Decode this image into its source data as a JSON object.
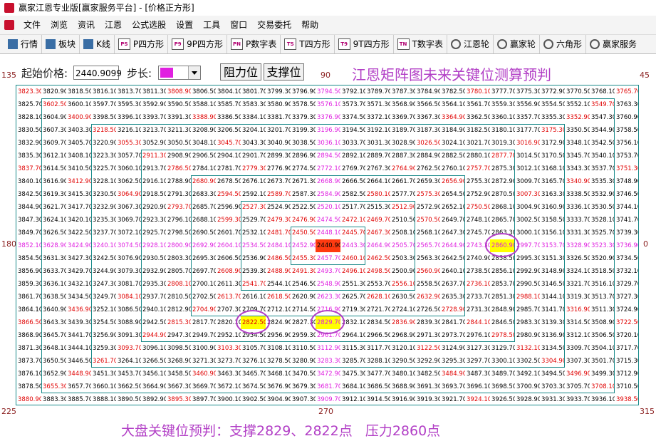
{
  "window": {
    "title": "赢家江恩专业版[赢家服务平台] - [价格正方形]",
    "menu": [
      "文件",
      "浏览",
      "资讯",
      "江恩",
      "公式选股",
      "设置",
      "工具",
      "窗口",
      "交易委托",
      "帮助"
    ],
    "toolbar": [
      {
        "label": "行情"
      },
      {
        "label": "板块"
      },
      {
        "label": "K线"
      },
      {
        "icon": "PS",
        "label": "P四方形"
      },
      {
        "icon": "P9",
        "label": "9P四方形"
      },
      {
        "icon": "PN",
        "label": "P数字表"
      },
      {
        "icon": "TS",
        "label": "T四方形"
      },
      {
        "icon": "T9",
        "label": "9T四方形"
      },
      {
        "icon": "TN",
        "label": "T数字表"
      },
      {
        "label": "江恩轮"
      },
      {
        "label": "赢家轮"
      },
      {
        "label": "六角形"
      },
      {
        "label": "赢家服务"
      }
    ]
  },
  "controls": {
    "start_price_label": "起始价格:",
    "start_price": "2440.9099",
    "step_label": "步长:",
    "buttons": [
      "阻力位",
      "支撑位"
    ]
  },
  "heading": "江恩矩阵图未来关键位测算预判",
  "angles": {
    "top_left": "135",
    "top": "90",
    "top_right": "45",
    "left": "180",
    "right": "0",
    "bottom_left": "225",
    "bottom": "270",
    "bottom_right": "315"
  },
  "table": {
    "rows": [
      [
        "3823.30",
        "3820.90",
        "3818.50",
        "3816.10",
        "3813.70",
        "3811.30",
        "3808.90",
        "3806.50",
        "3804.10",
        "3801.70",
        "3799.30",
        "3796.90",
        "3794.50",
        "3792.10",
        "3789.70",
        "3787.30",
        "3784.90",
        "3782.50",
        "3780.10",
        "3777.70",
        "3775.30",
        "3772.90",
        "3770.50",
        "3768.10",
        "3765.70"
      ],
      [
        "3825.70",
        "3602.50",
        "3600.10",
        "3597.70",
        "3595.30",
        "3592.90",
        "3590.50",
        "3588.10",
        "3585.70",
        "3583.30",
        "3580.90",
        "3578.50",
        "3576.10",
        "3573.70",
        "3571.30",
        "3568.90",
        "3566.50",
        "3564.10",
        "3561.70",
        "3559.30",
        "3556.90",
        "3554.50",
        "3552.10",
        "3549.70",
        "3763.30"
      ],
      [
        "3828.10",
        "3604.90",
        "3400.90",
        "3398.50",
        "3396.10",
        "3393.70",
        "3391.30",
        "3388.90",
        "3386.50",
        "3384.10",
        "3381.70",
        "3379.30",
        "3376.90",
        "3374.50",
        "3372.10",
        "3369.70",
        "3367.30",
        "3364.90",
        "3362.50",
        "3360.10",
        "3357.70",
        "3355.30",
        "3352.90",
        "3547.30",
        "3760.90"
      ],
      [
        "3830.50",
        "3607.30",
        "3403.30",
        "3218.50",
        "3216.10",
        "3213.70",
        "3211.30",
        "3208.90",
        "3206.50",
        "3204.10",
        "3201.70",
        "3199.30",
        "3196.90",
        "3194.50",
        "3192.10",
        "3189.70",
        "3187.30",
        "3184.90",
        "3182.50",
        "3180.10",
        "3177.70",
        "3175.30",
        "3350.50",
        "3544.90",
        "3758.50"
      ],
      [
        "3832.90",
        "3609.70",
        "3405.70",
        "3220.90",
        "3055.30",
        "3052.90",
        "3050.50",
        "3048.10",
        "3045.70",
        "3043.30",
        "3040.90",
        "3038.50",
        "3036.10",
        "3033.70",
        "3031.30",
        "3028.90",
        "3026.50",
        "3024.10",
        "3021.70",
        "3019.30",
        "3016.90",
        "3172.90",
        "3348.10",
        "3542.50",
        "3756.10"
      ],
      [
        "3835.30",
        "3612.10",
        "3408.10",
        "3223.30",
        "3057.70",
        "2911.30",
        "2908.90",
        "2906.50",
        "2904.10",
        "2901.70",
        "2899.30",
        "2896.90",
        "2894.50",
        "2892.10",
        "2889.70",
        "2887.30",
        "2884.90",
        "2882.50",
        "2880.10",
        "2877.70",
        "3014.50",
        "3170.50",
        "3345.70",
        "3540.10",
        "3753.70"
      ],
      [
        "3837.70",
        "3614.50",
        "3410.50",
        "3225.70",
        "3060.10",
        "2913.70",
        "2786.50",
        "2784.10",
        "2781.70",
        "2779.30",
        "2776.90",
        "2774.50",
        "2772.10",
        "2769.70",
        "2767.30",
        "2764.90",
        "2762.50",
        "2760.10",
        "2757.70",
        "2875.30",
        "3012.10",
        "3168.10",
        "3343.30",
        "3537.70",
        "3751.30"
      ],
      [
        "3840.10",
        "3616.90",
        "3412.90",
        "3228.10",
        "3062.50",
        "2916.10",
        "2788.90",
        "2680.90",
        "2678.50",
        "2676.10",
        "2673.70",
        "2671.30",
        "2668.90",
        "2666.50",
        "2664.10",
        "2661.70",
        "2659.30",
        "2656.90",
        "2755.30",
        "2872.90",
        "3009.70",
        "3165.70",
        "3340.90",
        "3535.30",
        "3748.90"
      ],
      [
        "3842.50",
        "3619.30",
        "3415.30",
        "3230.50",
        "3064.90",
        "2918.50",
        "2791.30",
        "2683.30",
        "2594.50",
        "2592.10",
        "2589.70",
        "2587.30",
        "2584.90",
        "2582.50",
        "2580.10",
        "2577.70",
        "2575.30",
        "2654.50",
        "2752.90",
        "2870.50",
        "3007.30",
        "3163.30",
        "3338.50",
        "3532.90",
        "3746.50"
      ],
      [
        "3844.90",
        "3621.70",
        "3417.70",
        "3232.90",
        "3067.30",
        "2920.90",
        "2793.70",
        "2685.70",
        "2596.90",
        "2527.30",
        "2524.90",
        "2522.50",
        "2520.10",
        "2517.70",
        "2515.30",
        "2512.90",
        "2572.90",
        "2652.10",
        "2750.50",
        "2868.10",
        "3004.90",
        "3160.90",
        "3336.10",
        "3530.50",
        "3744.10"
      ],
      [
        "3847.30",
        "3624.10",
        "3420.10",
        "3235.30",
        "3069.70",
        "2923.30",
        "2796.10",
        "2688.10",
        "2599.30",
        "2529.70",
        "2479.30",
        "2476.90",
        "2474.50",
        "2472.10",
        "2469.70",
        "2510.50",
        "2570.50",
        "2649.70",
        "2748.10",
        "2865.70",
        "3002.50",
        "3158.50",
        "3333.70",
        "3528.10",
        "3741.70"
      ],
      [
        "3849.70",
        "3626.50",
        "3422.50",
        "3237.70",
        "3072.10",
        "2925.70",
        "2798.50",
        "2690.50",
        "2601.70",
        "2532.10",
        "2481.70",
        "2450.50",
        "2448.10",
        "2445.70",
        "2467.30",
        "2508.10",
        "2568.10",
        "2647.30",
        "2745.70",
        "2863.30",
        "3000.10",
        "3156.10",
        "3331.30",
        "3525.70",
        "3739.30"
      ],
      [
        "3852.10",
        "3628.90",
        "3424.90",
        "3240.10",
        "3074.50",
        "2928.10",
        "2800.90",
        "2692.90",
        "2604.10",
        "2534.50",
        "2484.10",
        "2452.90",
        "2440.90",
        "2443.30",
        "2464.90",
        "2505.70",
        "2565.70",
        "2644.90",
        "2743.30",
        "2860.90",
        "2997.70",
        "3153.70",
        "3328.90",
        "3523.30",
        "3736.90"
      ],
      [
        "3854.50",
        "3631.30",
        "3427.30",
        "3242.50",
        "3076.90",
        "2930.50",
        "2803.30",
        "2695.30",
        "2606.50",
        "2536.90",
        "2486.50",
        "2455.30",
        "2457.70",
        "2460.10",
        "2462.50",
        "2503.30",
        "2563.30",
        "2642.50",
        "2740.90",
        "2858.50",
        "2995.30",
        "3151.30",
        "3326.50",
        "3520.90",
        "3734.50"
      ],
      [
        "3856.90",
        "3633.70",
        "3429.70",
        "3244.90",
        "3079.30",
        "2932.90",
        "2805.70",
        "2697.70",
        "2608.90",
        "2539.30",
        "2488.90",
        "2491.30",
        "2493.70",
        "2496.10",
        "2498.50",
        "2500.90",
        "2560.90",
        "2640.10",
        "2738.50",
        "2856.10",
        "2992.90",
        "3148.90",
        "3324.10",
        "3518.50",
        "3732.10"
      ],
      [
        "3859.30",
        "3636.10",
        "3432.10",
        "3247.30",
        "3081.70",
        "2935.30",
        "2808.10",
        "2700.10",
        "2611.30",
        "2541.70",
        "2544.10",
        "2546.50",
        "2548.90",
        "2551.30",
        "2553.70",
        "2556.10",
        "2558.50",
        "2637.70",
        "2736.10",
        "2853.70",
        "2990.50",
        "3146.50",
        "3321.70",
        "3516.10",
        "3729.70"
      ],
      [
        "3861.70",
        "3638.50",
        "3434.50",
        "3249.70",
        "3084.10",
        "2937.70",
        "2810.50",
        "2702.50",
        "2613.70",
        "2616.10",
        "2618.50",
        "2620.90",
        "2623.30",
        "2625.70",
        "2628.10",
        "2630.50",
        "2632.90",
        "2635.30",
        "2733.70",
        "2851.30",
        "2988.10",
        "3144.10",
        "3319.30",
        "3513.70",
        "3727.30"
      ],
      [
        "3864.10",
        "3640.90",
        "3436.90",
        "3252.10",
        "3086.50",
        "2940.10",
        "2812.90",
        "2704.90",
        "2707.30",
        "2709.70",
        "2712.10",
        "2714.50",
        "2716.90",
        "2719.30",
        "2721.70",
        "2724.10",
        "2726.50",
        "2728.90",
        "2731.30",
        "2848.90",
        "2985.70",
        "3141.70",
        "3316.90",
        "3511.30",
        "3724.90"
      ],
      [
        "3866.50",
        "3643.30",
        "3439.30",
        "3254.50",
        "3088.90",
        "2942.50",
        "2815.30",
        "2817.70",
        "2820.10",
        "2822.50",
        "2824.90",
        "2827.30",
        "2829.70",
        "2832.10",
        "2834.50",
        "2836.90",
        "2839.30",
        "2841.70",
        "2844.10",
        "2846.50",
        "2983.30",
        "3139.30",
        "3314.50",
        "3508.90",
        "3722.50"
      ],
      [
        "3868.90",
        "3645.70",
        "3441.70",
        "3256.90",
        "3091.30",
        "2944.90",
        "2947.30",
        "2949.70",
        "2952.10",
        "2954.50",
        "2956.90",
        "2959.30",
        "2961.70",
        "2964.10",
        "2966.50",
        "2968.90",
        "2971.30",
        "2973.70",
        "2976.10",
        "2978.50",
        "2980.90",
        "3136.90",
        "3312.10",
        "3506.50",
        "3720.10"
      ],
      [
        "3871.30",
        "3648.10",
        "3444.10",
        "3259.30",
        "3093.70",
        "3096.10",
        "3098.50",
        "3100.90",
        "3103.30",
        "3105.70",
        "3108.10",
        "3110.50",
        "3112.90",
        "3115.30",
        "3117.70",
        "3120.10",
        "3122.50",
        "3124.90",
        "3127.30",
        "3129.70",
        "3132.10",
        "3134.50",
        "3309.70",
        "3504.10",
        "3717.70"
      ],
      [
        "3873.70",
        "3650.50",
        "3446.50",
        "3261.70",
        "3264.10",
        "3266.50",
        "3268.90",
        "3271.30",
        "3273.70",
        "3276.10",
        "3278.50",
        "3280.90",
        "3283.30",
        "3285.70",
        "3288.10",
        "3290.50",
        "3292.90",
        "3295.30",
        "3297.70",
        "3300.10",
        "3302.50",
        "3304.90",
        "3307.30",
        "3501.70",
        "3715.30"
      ],
      [
        "3876.10",
        "3652.90",
        "3448.90",
        "3451.30",
        "3453.70",
        "3456.10",
        "3458.50",
        "3460.90",
        "3463.30",
        "3465.70",
        "3468.10",
        "3470.50",
        "3472.90",
        "3475.30",
        "3477.70",
        "3480.10",
        "3482.50",
        "3484.90",
        "3487.30",
        "3489.70",
        "3492.10",
        "3494.50",
        "3496.90",
        "3499.30",
        "3712.90"
      ],
      [
        "3878.50",
        "3655.30",
        "3657.70",
        "3660.10",
        "3662.50",
        "3664.90",
        "3667.30",
        "3669.70",
        "3672.10",
        "3674.50",
        "3676.90",
        "3679.30",
        "3681.70",
        "3684.10",
        "3686.50",
        "3688.90",
        "3691.30",
        "3693.70",
        "3696.10",
        "3698.50",
        "3700.90",
        "3703.30",
        "3705.70",
        "3708.10",
        "3710.50"
      ],
      [
        "3880.90",
        "3883.30",
        "3885.70",
        "3888.10",
        "3890.50",
        "3892.90",
        "3895.30",
        "3897.70",
        "3900.10",
        "3902.50",
        "3904.90",
        "3907.30",
        "3909.70",
        "3912.10",
        "3914.50",
        "3916.90",
        "3919.30",
        "3921.70",
        "3924.10",
        "3926.50",
        "3928.90",
        "3931.30",
        "3933.70",
        "3936.10",
        "3938.50"
      ]
    ]
  },
  "footer": "大盘关键位预判：支撑2829、2822点   压力2860点"
}
